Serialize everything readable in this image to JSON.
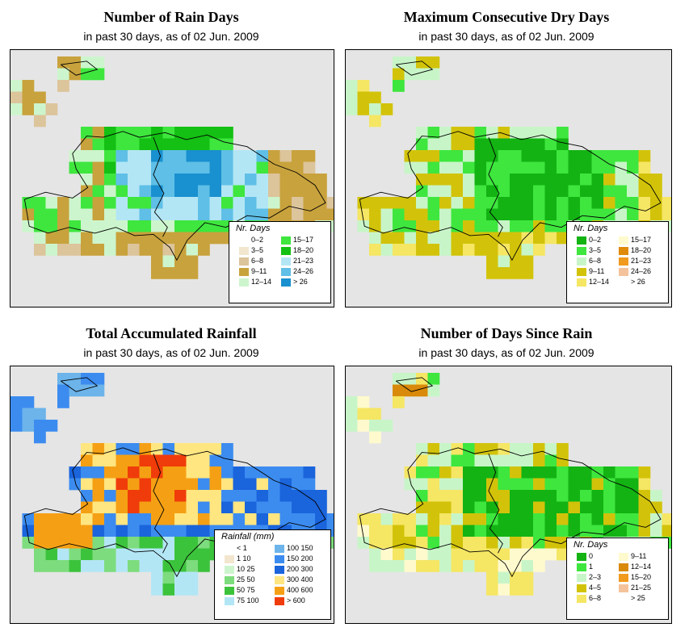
{
  "panels": [
    {
      "id": "rain-days",
      "title": "Number of Rain Days",
      "subtitle": "in past 30 days, as of  02 Jun. 2009",
      "legend": {
        "title": "Nr. Days",
        "items": [
          {
            "label": "0–2",
            "color": "#ffffff"
          },
          {
            "label": "3–5",
            "color": "#f3e6cf"
          },
          {
            "label": "6–8",
            "color": "#dcc49b"
          },
          {
            "label": "9–11",
            "color": "#c8a23c"
          },
          {
            "label": "12–14",
            "color": "#cdf5cd"
          },
          {
            "label": "15–17",
            "color": "#3ee63e"
          },
          {
            "label": "18–20",
            "color": "#13c013"
          },
          {
            "label": "21–23",
            "color": "#b3e6f5"
          },
          {
            "label": "24–26",
            "color": "#5fbfe6"
          },
          {
            "label": "> 26",
            "color": "#1990cf"
          }
        ]
      }
    },
    {
      "id": "max-dry-days",
      "title": "Maximum Consecutive Dry Days",
      "subtitle": "in past 30 days, as of  02 Jun. 2009",
      "legend": {
        "title": "Nr. Days",
        "items": [
          {
            "label": "0–2",
            "color": "#13b313"
          },
          {
            "label": "3–5",
            "color": "#3ee63e"
          },
          {
            "label": "6–8",
            "color": "#c8f5c8"
          },
          {
            "label": "9–11",
            "color": "#d2c30a"
          },
          {
            "label": "12–14",
            "color": "#f5e664"
          },
          {
            "label": "15–17",
            "color": "#fffacd"
          },
          {
            "label": "18–20",
            "color": "#e08a0a"
          },
          {
            "label": "21–23",
            "color": "#f09a1e"
          },
          {
            "label": "24–26",
            "color": "#f5c39b"
          },
          {
            "label": "> 26",
            "color": "#ffffff"
          }
        ]
      }
    },
    {
      "id": "total-rainfall",
      "title": "Total Accumulated Rainfall",
      "subtitle": "in past 30 days, as of  02 Jun. 2009",
      "legend": {
        "title": "Rainfall (mm)",
        "items": [
          {
            "label": "< 1",
            "color": "#ffffff"
          },
          {
            "label": "1    10",
            "color": "#f3e6cf"
          },
          {
            "label": "10    25",
            "color": "#cdf5cd"
          },
          {
            "label": "25    50",
            "color": "#7ddc7d"
          },
          {
            "label": "50    75",
            "color": "#3cc33c"
          },
          {
            "label": "75  100",
            "color": "#b3e6f5"
          },
          {
            "label": "100  150",
            "color": "#6cb4ea"
          },
          {
            "label": "150  200",
            "color": "#3c8cf0"
          },
          {
            "label": "200  300",
            "color": "#1a64dc"
          },
          {
            "label": "300  400",
            "color": "#ffe680"
          },
          {
            "label": "400  600",
            "color": "#f5a014"
          },
          {
            "label": "> 600",
            "color": "#f03c0a"
          }
        ]
      }
    },
    {
      "id": "days-since-rain",
      "title": "Number of Days Since Rain",
      "subtitle": "in past 30 days, as of  02 Jun. 2009",
      "legend": {
        "title": "Nr. Days",
        "items": [
          {
            "label": "0",
            "color": "#13b313"
          },
          {
            "label": "1",
            "color": "#3ee63e"
          },
          {
            "label": "2–3",
            "color": "#c8f5c8"
          },
          {
            "label": "4–5",
            "color": "#d2c30a"
          },
          {
            "label": "6–8",
            "color": "#f5e664"
          },
          {
            "label": "9–11",
            "color": "#fffacd"
          },
          {
            "label": "12–14",
            "color": "#d98a0a"
          },
          {
            "label": "15–20",
            "color": "#f09a1e"
          },
          {
            "label": "21–25",
            "color": "#f5c39b"
          },
          {
            "label": "> 25",
            "color": "#ffffff"
          }
        ]
      }
    }
  ]
}
